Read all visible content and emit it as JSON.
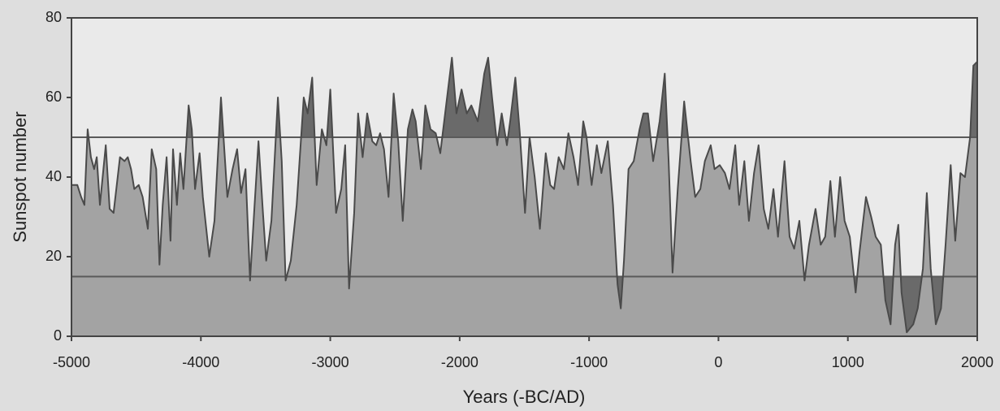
{
  "chart_data": {
    "type": "area",
    "x_label": "Years (-BC/AD)",
    "y_label": "Sunspot number",
    "xlim": [
      -5000,
      2000
    ],
    "ylim": [
      0,
      80
    ],
    "xticks": [
      -5000,
      -4000,
      -3000,
      -2000,
      -1000,
      0,
      1000,
      2000
    ],
    "yticks": [
      0,
      20,
      40,
      60,
      80
    ],
    "hlines": [
      50,
      15
    ],
    "color": "#a3a3a3",
    "highlight_color": "#6a6a6a",
    "line_color": "#4a4a4a",
    "x": [
      -5000,
      -4955,
      -4925,
      -4900,
      -4875,
      -4850,
      -4825,
      -4805,
      -4780,
      -4735,
      -4705,
      -4675,
      -4625,
      -4590,
      -4565,
      -4540,
      -4515,
      -4480,
      -4450,
      -4410,
      -4380,
      -4345,
      -4320,
      -4295,
      -4265,
      -4235,
      -4215,
      -4185,
      -4160,
      -4135,
      -4095,
      -4070,
      -4045,
      -4010,
      -3985,
      -3935,
      -3895,
      -3845,
      -3795,
      -3755,
      -3720,
      -3690,
      -3655,
      -3620,
      -3585,
      -3555,
      -3520,
      -3495,
      -3455,
      -3405,
      -3375,
      -3345,
      -3305,
      -3260,
      -3205,
      -3175,
      -3140,
      -3105,
      -3065,
      -3030,
      -3000,
      -2955,
      -2915,
      -2885,
      -2855,
      -2815,
      -2785,
      -2750,
      -2715,
      -2675,
      -2645,
      -2615,
      -2585,
      -2550,
      -2510,
      -2475,
      -2440,
      -2400,
      -2365,
      -2340,
      -2300,
      -2265,
      -2225,
      -2185,
      -2150,
      -2060,
      -2025,
      -1985,
      -1945,
      -1910,
      -1860,
      -1810,
      -1780,
      -1750,
      -1710,
      -1675,
      -1635,
      -1610,
      -1570,
      -1535,
      -1495,
      -1460,
      -1420,
      -1380,
      -1335,
      -1300,
      -1270,
      -1235,
      -1195,
      -1160,
      -1120,
      -1085,
      -1045,
      -1020,
      -980,
      -940,
      -905,
      -855,
      -815,
      -780,
      -755,
      -730,
      -695,
      -655,
      -610,
      -580,
      -545,
      -505,
      -455,
      -415,
      -385,
      -355,
      -315,
      -265,
      -215,
      -180,
      -140,
      -105,
      -60,
      -30,
      10,
      50,
      85,
      130,
      160,
      200,
      235,
      275,
      310,
      350,
      385,
      425,
      460,
      510,
      550,
      585,
      625,
      665,
      700,
      750,
      790,
      825,
      865,
      900,
      940,
      975,
      1015,
      1060,
      1090,
      1140,
      1180,
      1215,
      1255,
      1290,
      1330,
      1365,
      1390,
      1415,
      1455,
      1505,
      1540,
      1580,
      1610,
      1640,
      1680,
      1720,
      1755,
      1795,
      1830,
      1870,
      1905,
      1945,
      1970,
      2000
    ],
    "values": [
      38,
      38,
      35,
      33,
      52,
      45,
      42,
      45,
      33,
      48,
      32,
      31,
      45,
      44,
      45,
      42,
      37,
      38,
      35,
      27,
      47,
      42,
      18,
      33,
      45,
      24,
      47,
      33,
      46,
      37,
      58,
      52,
      37,
      46,
      35,
      20,
      29,
      60,
      35,
      42,
      47,
      36,
      42,
      14,
      33,
      49,
      31,
      19,
      29,
      60,
      44,
      14,
      19,
      33,
      60,
      56,
      65,
      38,
      52,
      48,
      62,
      31,
      37,
      48,
      12,
      31,
      56,
      45,
      56,
      49,
      48,
      51,
      47,
      35,
      61,
      49,
      29,
      52,
      57,
      54,
      42,
      58,
      52,
      51,
      46,
      70,
      56,
      62,
      56,
      58,
      54,
      66,
      70,
      60,
      48,
      56,
      48,
      54,
      65,
      51,
      31,
      50,
      40,
      27,
      46,
      38,
      37,
      45,
      42,
      51,
      45,
      38,
      54,
      50,
      38,
      48,
      41,
      49,
      33,
      13,
      7,
      19,
      42,
      44,
      52,
      56,
      56,
      44,
      54,
      66,
      44,
      16,
      37,
      59,
      44,
      35,
      37,
      44,
      48,
      42,
      43,
      41,
      37,
      48,
      33,
      44,
      29,
      41,
      48,
      32,
      27,
      37,
      25,
      44,
      25,
      22,
      29,
      14,
      23,
      32,
      23,
      25,
      39,
      25,
      40,
      29,
      25,
      11,
      21,
      35,
      30,
      25,
      23,
      9,
      3,
      23,
      28,
      11,
      1,
      3,
      7,
      17,
      36,
      17,
      3,
      7,
      23,
      43,
      24,
      41,
      40,
      50,
      68,
      69
    ]
  }
}
